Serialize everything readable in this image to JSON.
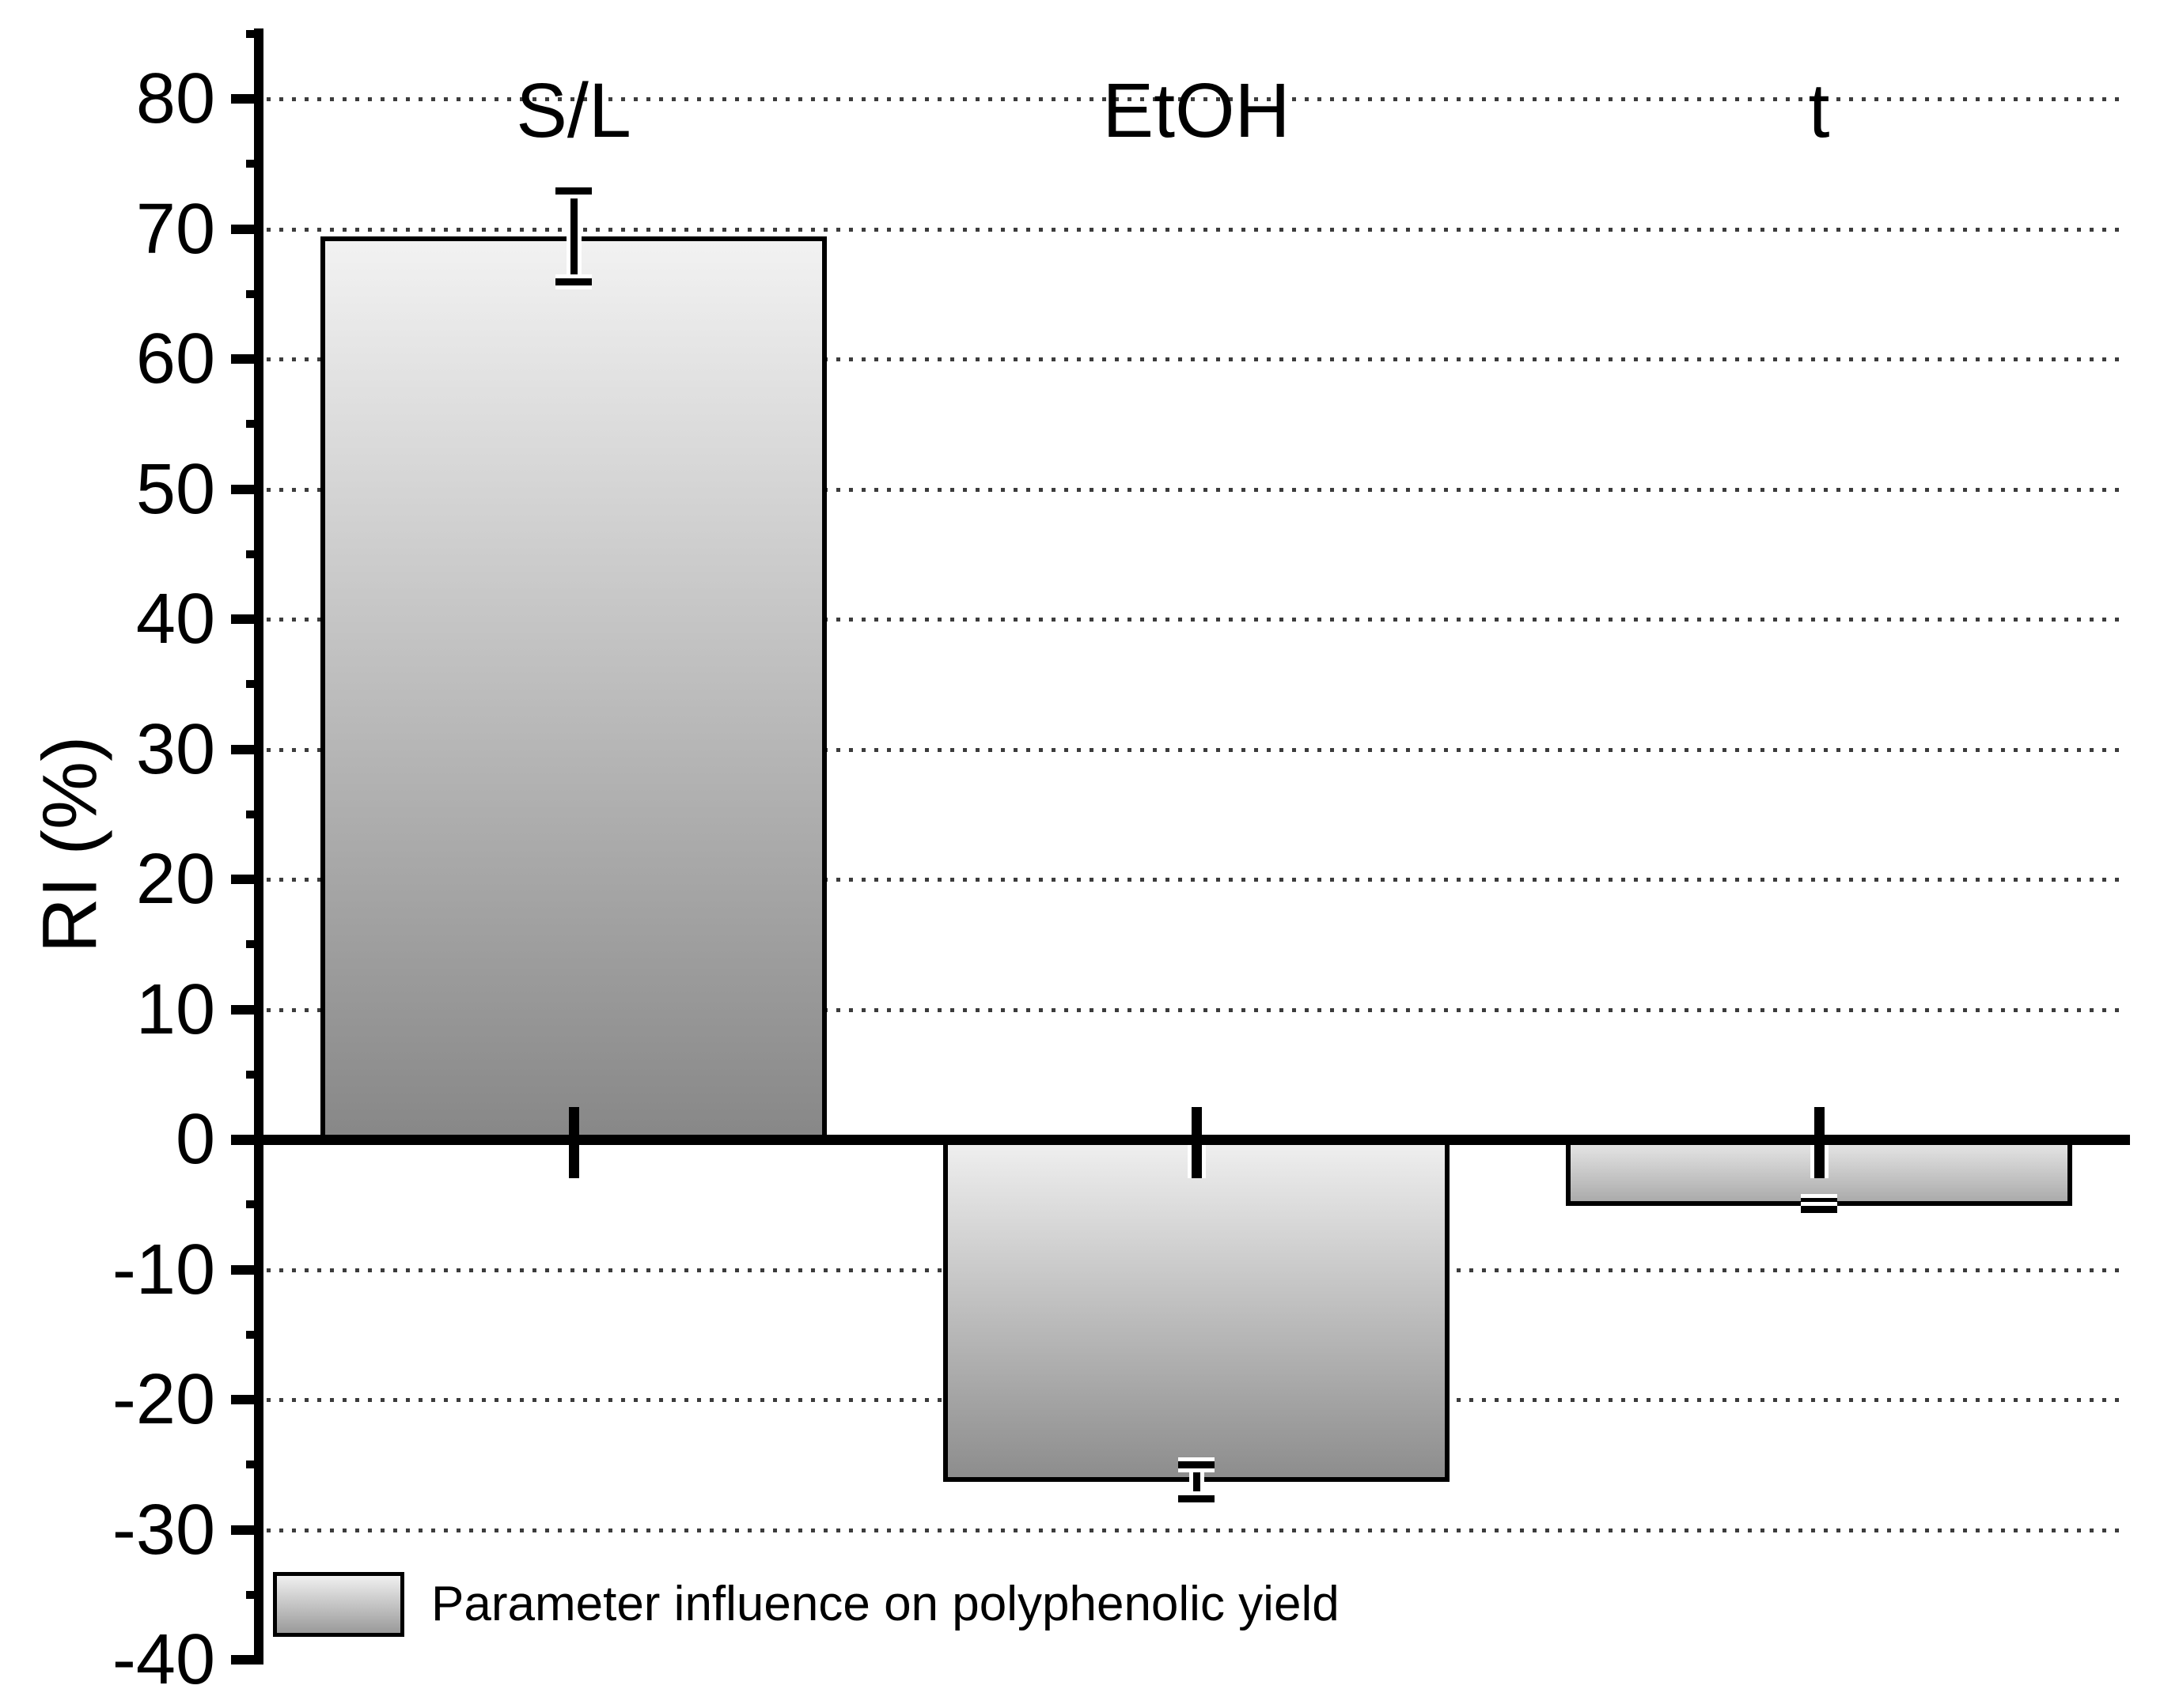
{
  "chart_data": {
    "type": "bar",
    "title": "",
    "categories": [
      "S/L",
      "EtOH",
      "t"
    ],
    "series": [
      {
        "name": "Parameter influence on polyphenolic yield",
        "values": [
          69.4,
          -26.3,
          -5.1
        ],
        "errors": [
          3.5,
          1.3,
          0.3
        ]
      }
    ],
    "xlabel": "",
    "ylabel": "RI (%)",
    "ylim": [
      -40,
      85
    ],
    "ytick_major_interval": 10,
    "ytick_minor_interval": 5,
    "ytick_labels": [
      "80",
      "70",
      "60",
      "50",
      "40",
      "30",
      "20",
      "10",
      "0",
      "-10",
      "-20",
      "-30",
      "-40"
    ],
    "grid": "horizontal dotted lines at major ticks",
    "legend_position": "bottom-left inside plot",
    "baseline": 0
  },
  "legend": {
    "label": "Parameter influence on polyphenolic yield"
  },
  "colors": {
    "background": "#ffffff",
    "axis": "#000000",
    "text": "#000000",
    "grid_dot": "#3c3c3c",
    "bar_border": "#000000",
    "error_bar": "#000000",
    "bar_gradients": [
      [
        "#f2f2f2",
        "#878787"
      ],
      [
        "#f0f0f0",
        "#8d8d8d"
      ],
      [
        "#e9e9e9",
        "#ababab"
      ]
    ],
    "legend_gradient": [
      "#f0f0f0",
      "#9a9a9a"
    ]
  }
}
